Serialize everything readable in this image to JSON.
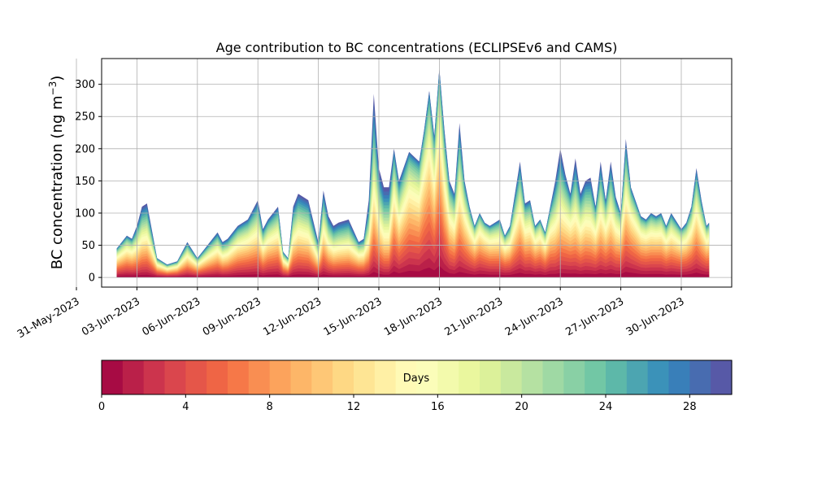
{
  "chart_data": {
    "type": "area",
    "title": "Age contribution to BC concentrations (ECLIPSEv6 and CAMS)",
    "ylabel": "BC concentration (ng m",
    "ylabel_sup": "−3",
    "ylabel_close": ")",
    "xlabel": "",
    "ylim": [
      -15,
      340
    ],
    "xlim": [
      "2023-06-01T06:00",
      "2023-07-02T12:00"
    ],
    "grid": true,
    "yticks": [
      0,
      50,
      100,
      150,
      200,
      250,
      300
    ],
    "xticks": [
      {
        "date": "2023-05-31",
        "label": "31-May-2023"
      },
      {
        "date": "2023-06-03",
        "label": "03-Jun-2023"
      },
      {
        "date": "2023-06-06",
        "label": "06-Jun-2023"
      },
      {
        "date": "2023-06-09",
        "label": "09-Jun-2023"
      },
      {
        "date": "2023-06-12",
        "label": "12-Jun-2023"
      },
      {
        "date": "2023-06-15",
        "label": "15-Jun-2023"
      },
      {
        "date": "2023-06-18",
        "label": "18-Jun-2023"
      },
      {
        "date": "2023-06-21",
        "label": "21-Jun-2023"
      },
      {
        "date": "2023-06-24",
        "label": "24-Jun-2023"
      },
      {
        "date": "2023-06-27",
        "label": "27-Jun-2023"
      },
      {
        "date": "2023-06-30",
        "label": "30-Jun-2023"
      }
    ],
    "x": [
      "2023-06-02T00:00",
      "2023-06-02T12:00",
      "2023-06-02T18:00",
      "2023-06-03T00:00",
      "2023-06-03T06:00",
      "2023-06-03T12:00",
      "2023-06-04T00:00",
      "2023-06-04T12:00",
      "2023-06-05T00:00",
      "2023-06-05T12:00",
      "2023-06-06T00:00",
      "2023-06-06T12:00",
      "2023-06-07T00:00",
      "2023-06-07T06:00",
      "2023-06-07T12:00",
      "2023-06-08T00:00",
      "2023-06-08T12:00",
      "2023-06-09T00:00",
      "2023-06-09T06:00",
      "2023-06-09T12:00",
      "2023-06-10T00:00",
      "2023-06-10T06:00",
      "2023-06-10T12:00",
      "2023-06-10T18:00",
      "2023-06-11T00:00",
      "2023-06-11T12:00",
      "2023-06-12T00:00",
      "2023-06-12T06:00",
      "2023-06-12T12:00",
      "2023-06-12T18:00",
      "2023-06-13T00:00",
      "2023-06-13T12:00",
      "2023-06-14T00:00",
      "2023-06-14T06:00",
      "2023-06-14T12:00",
      "2023-06-14T18:00",
      "2023-06-15T00:00",
      "2023-06-15T06:00",
      "2023-06-15T12:00",
      "2023-06-15T18:00",
      "2023-06-16T00:00",
      "2023-06-16T12:00",
      "2023-06-17T00:00",
      "2023-06-17T06:00",
      "2023-06-17T12:00",
      "2023-06-17T18:00",
      "2023-06-18T00:00",
      "2023-06-18T06:00",
      "2023-06-18T12:00",
      "2023-06-18T18:00",
      "2023-06-19T00:00",
      "2023-06-19T06:00",
      "2023-06-19T12:00",
      "2023-06-19T18:00",
      "2023-06-20T00:00",
      "2023-06-20T06:00",
      "2023-06-20T12:00",
      "2023-06-21T00:00",
      "2023-06-21T06:00",
      "2023-06-21T12:00",
      "2023-06-22T00:00",
      "2023-06-22T06:00",
      "2023-06-22T12:00",
      "2023-06-22T18:00",
      "2023-06-23T00:00",
      "2023-06-23T06:00",
      "2023-06-23T12:00",
      "2023-06-23T18:00",
      "2023-06-24T00:00",
      "2023-06-24T06:00",
      "2023-06-24T12:00",
      "2023-06-24T18:00",
      "2023-06-25T00:00",
      "2023-06-25T06:00",
      "2023-06-25T12:00",
      "2023-06-25T18:00",
      "2023-06-26T00:00",
      "2023-06-26T06:00",
      "2023-06-26T12:00",
      "2023-06-26T18:00",
      "2023-06-27T00:00",
      "2023-06-27T06:00",
      "2023-06-27T12:00",
      "2023-06-28T00:00",
      "2023-06-28T06:00",
      "2023-06-28T12:00",
      "2023-06-28T18:00",
      "2023-06-29T00:00",
      "2023-06-29T06:00",
      "2023-06-29T12:00",
      "2023-06-30T00:00",
      "2023-06-30T06:00",
      "2023-06-30T12:00",
      "2023-06-30T18:00",
      "2023-07-01T00:00",
      "2023-07-01T06:00",
      "2023-07-01T09:00"
    ],
    "total": [
      45,
      65,
      60,
      80,
      110,
      115,
      30,
      20,
      25,
      55,
      30,
      50,
      70,
      55,
      60,
      80,
      90,
      120,
      75,
      90,
      110,
      40,
      30,
      110,
      130,
      120,
      55,
      135,
      95,
      80,
      85,
      90,
      55,
      60,
      120,
      285,
      170,
      140,
      140,
      200,
      150,
      195,
      180,
      230,
      290,
      220,
      325,
      230,
      150,
      130,
      240,
      150,
      110,
      80,
      100,
      85,
      80,
      90,
      65,
      80,
      180,
      115,
      120,
      80,
      90,
      70,
      110,
      150,
      200,
      160,
      130,
      185,
      130,
      150,
      155,
      110,
      180,
      120,
      180,
      125,
      100,
      215,
      140,
      95,
      90,
      100,
      95,
      100,
      80,
      100,
      75,
      85,
      110,
      170,
      120,
      80,
      85
    ],
    "old_share": [
      0.55,
      0.5,
      0.5,
      0.35,
      0.3,
      0.3,
      0.5,
      0.5,
      0.5,
      0.4,
      0.5,
      0.45,
      0.4,
      0.4,
      0.4,
      0.45,
      0.45,
      0.35,
      0.4,
      0.45,
      0.4,
      0.5,
      0.5,
      0.3,
      0.3,
      0.3,
      0.3,
      0.3,
      0.3,
      0.3,
      0.3,
      0.3,
      0.45,
      0.4,
      0.2,
      0.2,
      0.25,
      0.2,
      0.2,
      0.45,
      0.4,
      0.55,
      0.55,
      0.6,
      0.55,
      0.5,
      0.6,
      0.45,
      0.4,
      0.4,
      0.3,
      0.45,
      0.5,
      0.6,
      0.6,
      0.65,
      0.6,
      0.5,
      0.6,
      0.5,
      0.35,
      0.45,
      0.45,
      0.6,
      0.6,
      0.6,
      0.5,
      0.3,
      0.25,
      0.35,
      0.45,
      0.25,
      0.35,
      0.35,
      0.3,
      0.45,
      0.3,
      0.45,
      0.3,
      0.4,
      0.55,
      0.35,
      0.55,
      0.6,
      0.6,
      0.55,
      0.6,
      0.55,
      0.6,
      0.5,
      0.6,
      0.55,
      0.5,
      0.4,
      0.45,
      0.6,
      0.6
    ],
    "colorbar": {
      "label": "Days",
      "range": [
        0,
        30
      ],
      "ticks": [
        0,
        4,
        8,
        12,
        16,
        20,
        24,
        28
      ],
      "colormap": "Spectral",
      "n_bins": 30
    }
  }
}
